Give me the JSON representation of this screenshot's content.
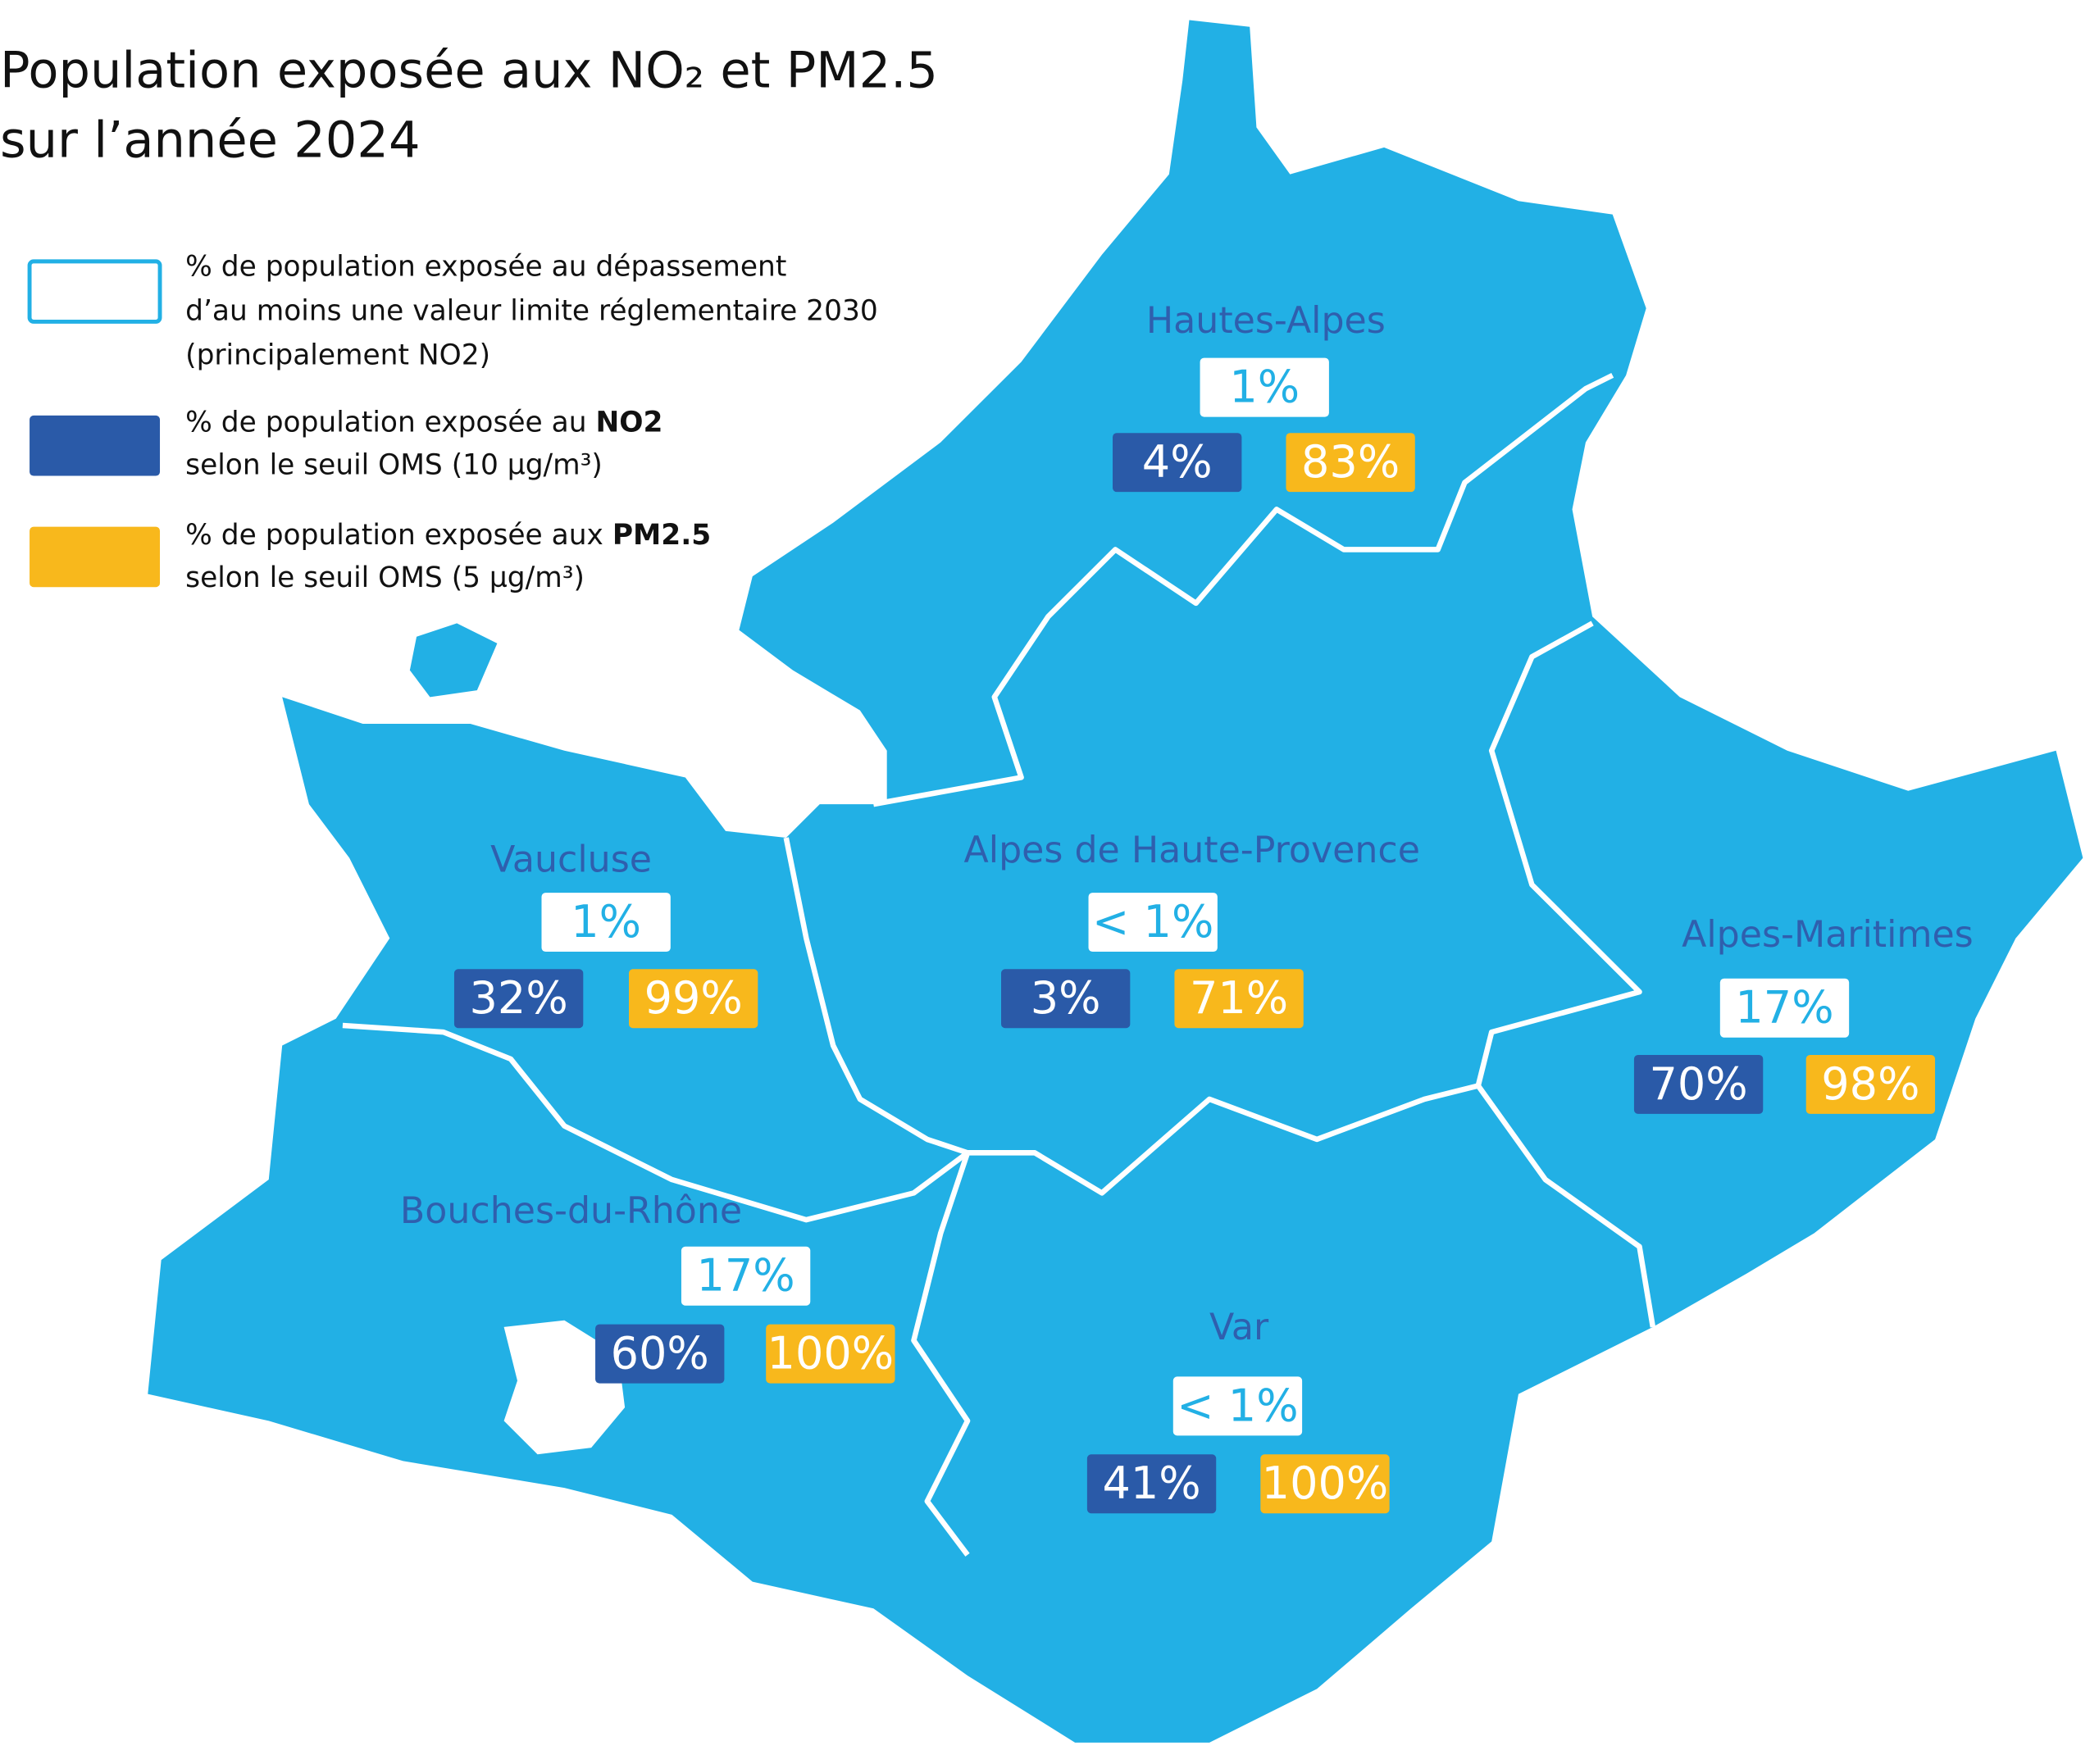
{
  "title": {
    "lines": [
      "Population exposée aux NO₂ et PM2.5",
      "sur l’année 2024"
    ]
  },
  "legend": {
    "items": [
      {
        "lines": [
          [
            "% de population exposée au dépassement"
          ],
          [
            "d’au moins une valeur limite réglementaire 2030"
          ],
          [
            "(principalement NO2)"
          ]
        ]
      },
      {
        "lines": [
          [
            "% de population exposée au ",
            "NO2"
          ],
          [
            "selon le seuil OMS (10 µg/m³)"
          ]
        ]
      },
      {
        "lines": [
          [
            "% de population exposée aux ",
            "PM2.5"
          ],
          [
            "selon le seuil OMS (5 µg/m³)"
          ]
        ]
      }
    ]
  },
  "regions": [
    {
      "name": "Hautes-Alpes",
      "limit": "1%",
      "no2": "4%",
      "pm25": "83%"
    },
    {
      "name": "Vaucluse",
      "limit": "1%",
      "no2": "32%",
      "pm25": "99%"
    },
    {
      "name": "Alpes de Haute-Provence",
      "limit": "< 1%",
      "no2": "3%",
      "pm25": "71%"
    },
    {
      "name": "Alpes-Maritimes",
      "limit": "17%",
      "no2": "70%",
      "pm25": "98%"
    },
    {
      "name": "Bouches-du-Rhône",
      "limit": "17%",
      "no2": "60%",
      "pm25": "100%"
    },
    {
      "name": "Var",
      "limit": "< 1%",
      "no2": "41%",
      "pm25": "100%"
    }
  ]
}
